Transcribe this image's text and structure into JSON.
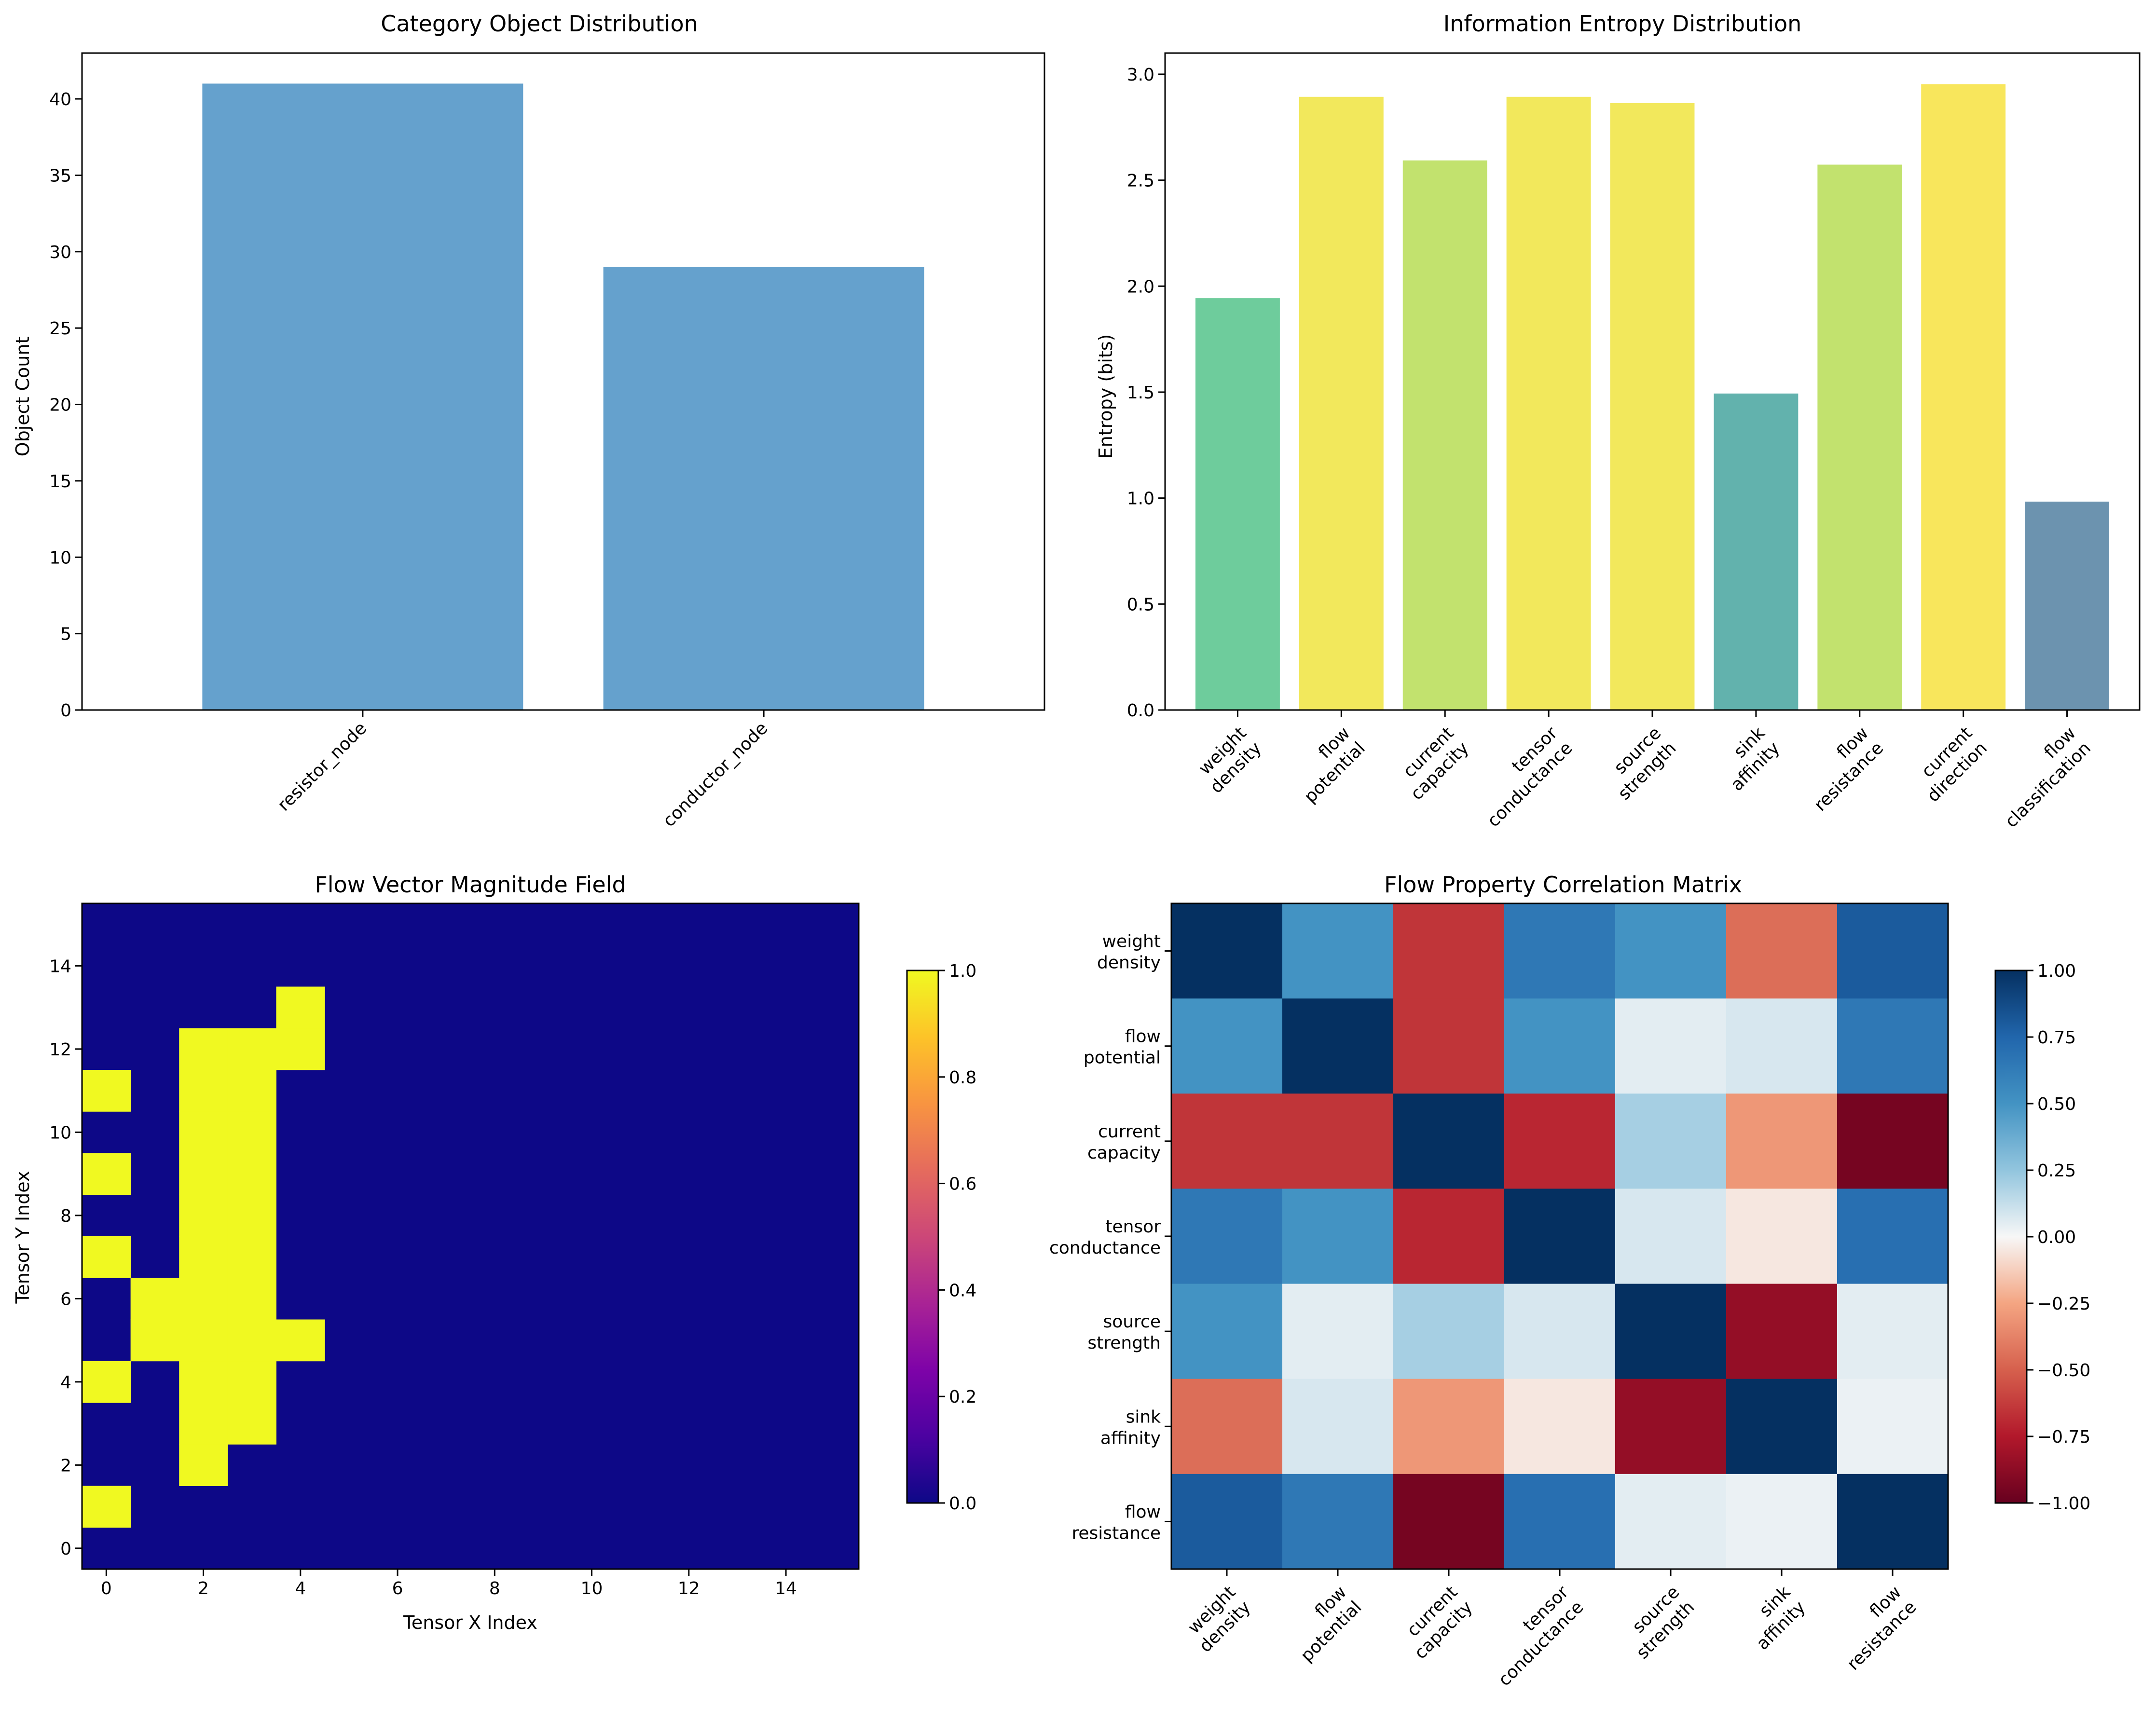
{
  "chart_data": [
    {
      "type": "bar",
      "title": "Category Object Distribution",
      "xlabel": "",
      "ylabel": "Object Count",
      "categories": [
        "resistor_node",
        "conductor_node"
      ],
      "values": [
        41,
        29
      ],
      "ylim": [
        0,
        43
      ],
      "yticks": [
        0,
        5,
        10,
        15,
        20,
        25,
        30,
        35,
        40
      ],
      "color": "#4a90c4"
    },
    {
      "type": "bar",
      "title": "Information Entropy Distribution",
      "xlabel": "",
      "ylabel": "Entropy (bits)",
      "categories": [
        [
          "weight",
          "density"
        ],
        [
          "flow",
          "potential"
        ],
        [
          "current",
          "capacity"
        ],
        [
          "tensor",
          "conductance"
        ],
        [
          "source",
          "strength"
        ],
        [
          "sink",
          "affinity"
        ],
        [
          "flow",
          "resistance"
        ],
        [
          "current",
          "direction"
        ],
        [
          "flow",
          "classification"
        ]
      ],
      "values": [
        1.94,
        2.89,
        2.59,
        2.89,
        2.86,
        1.49,
        2.57,
        2.95,
        0.98
      ],
      "ylim": [
        0,
        3.1
      ],
      "yticks": [
        0.0,
        0.5,
        1.0,
        1.5,
        2.0,
        2.5,
        3.0
      ],
      "colors": [
        "#6ecc9c",
        "#f2e85c",
        "#c2e26e",
        "#f2e85c",
        "#f2e85c",
        "#62b2ad",
        "#c2e26e",
        "#f8e65c",
        "#6c93af"
      ]
    },
    {
      "type": "heatmap",
      "title": "Flow Vector Magnitude Field",
      "xlabel": "Tensor X Index",
      "ylabel": "Tensor Y Index",
      "xticks": [
        0,
        2,
        4,
        6,
        8,
        10,
        12,
        14
      ],
      "yticks": [
        0,
        2,
        4,
        6,
        8,
        10,
        12,
        14
      ],
      "grid_size": 16,
      "origin": "lower",
      "colormap": "plasma",
      "active_cells": [
        [
          0,
          1
        ],
        [
          2,
          2
        ],
        [
          2,
          3
        ],
        [
          3,
          3
        ],
        [
          0,
          4
        ],
        [
          2,
          4
        ],
        [
          3,
          4
        ],
        [
          1,
          5
        ],
        [
          2,
          5
        ],
        [
          3,
          5
        ],
        [
          4,
          5
        ],
        [
          1,
          6
        ],
        [
          2,
          6
        ],
        [
          3,
          6
        ],
        [
          0,
          7
        ],
        [
          2,
          7
        ],
        [
          3,
          7
        ],
        [
          2,
          8
        ],
        [
          3,
          8
        ],
        [
          0,
          9
        ],
        [
          2,
          9
        ],
        [
          3,
          9
        ],
        [
          2,
          10
        ],
        [
          3,
          10
        ],
        [
          0,
          11
        ],
        [
          2,
          11
        ],
        [
          3,
          11
        ],
        [
          2,
          12
        ],
        [
          3,
          12
        ],
        [
          4,
          12
        ],
        [
          4,
          13
        ]
      ],
      "colorbar": {
        "ticks": [
          "0.0",
          "0.2",
          "0.4",
          "0.6",
          "0.8",
          "1.0"
        ],
        "range": [
          0,
          1
        ]
      }
    },
    {
      "type": "heatmap",
      "title": "Flow Property Correlation Matrix",
      "xlabel": "",
      "ylabel": "",
      "colormap": "RdBu",
      "labels": [
        [
          "weight",
          "density"
        ],
        [
          "flow",
          "potential"
        ],
        [
          "current",
          "capacity"
        ],
        [
          "tensor",
          "conductance"
        ],
        [
          "source",
          "strength"
        ],
        [
          "sink",
          "affinity"
        ],
        [
          "flow",
          "resistance"
        ]
      ],
      "matrix": [
        [
          1.0,
          0.5,
          -0.65,
          0.65,
          0.5,
          -0.45,
          0.8
        ],
        [
          0.5,
          1.0,
          -0.65,
          0.5,
          0.05,
          0.08,
          0.65
        ],
        [
          -0.65,
          -0.65,
          1.0,
          -0.7,
          0.2,
          -0.3,
          -0.95
        ],
        [
          0.65,
          0.5,
          -0.7,
          1.0,
          0.08,
          -0.05,
          0.7
        ],
        [
          0.5,
          0.05,
          0.2,
          0.08,
          1.0,
          -0.85,
          0.05
        ],
        [
          -0.45,
          0.08,
          -0.3,
          -0.05,
          -0.85,
          1.0,
          0.03
        ],
        [
          0.8,
          0.65,
          -0.95,
          0.7,
          0.05,
          0.03,
          1.0
        ]
      ],
      "colorbar": {
        "ticks": [
          "−1.00",
          "−0.75",
          "−0.50",
          "−0.25",
          "0.00",
          "0.25",
          "0.50",
          "0.75",
          "1.00"
        ],
        "range": [
          -1,
          1
        ]
      }
    }
  ]
}
